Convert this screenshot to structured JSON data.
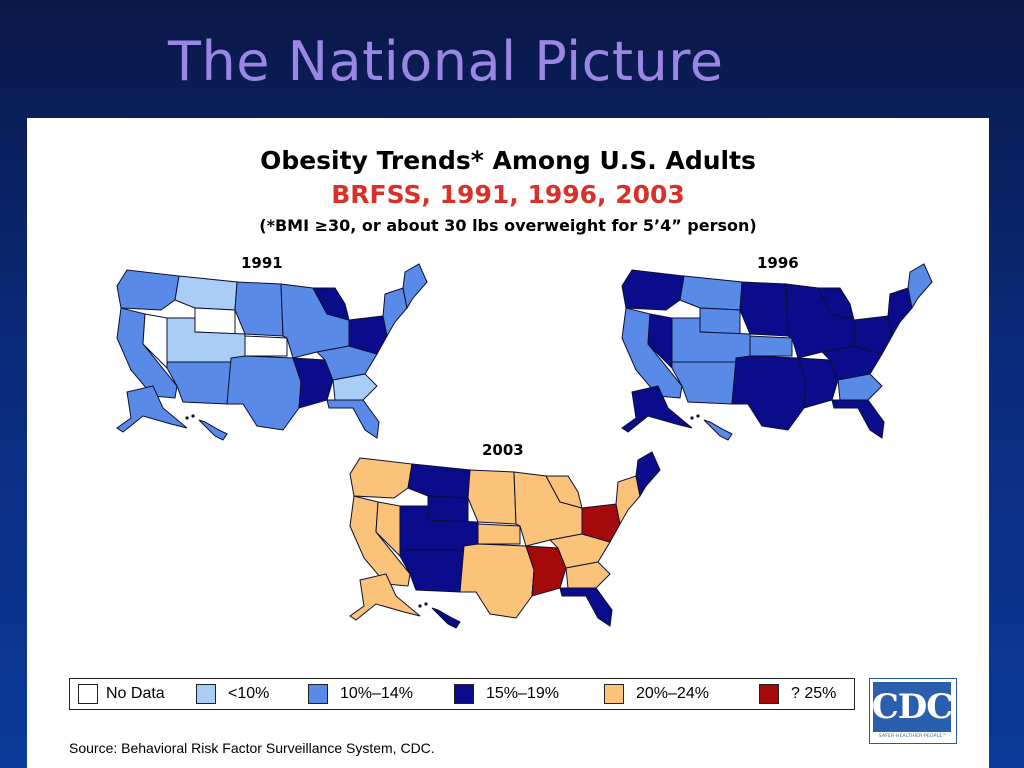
{
  "slide": {
    "title": "The National Picture",
    "heading": "Obesity Trends* Among U.S. Adults",
    "subheading": "BRFSS, 1991, 1996, 2003",
    "note": "(*BMI ≥30, or about 30 lbs overweight for 5’4” person)",
    "source": "Source: Behavioral Risk Factor Surveillance System, CDC."
  },
  "colors": {
    "no_data": "#ffffff",
    "lt10": "#a9cdf5",
    "10_14": "#5a8ae8",
    "15_19": "#0a0c8c",
    "20_24": "#fbc27a",
    "gte25": "#a50a0a"
  },
  "maps": [
    {
      "label": "1991",
      "regions": {
        "pacific_nw": "10_14",
        "california": "10_14",
        "nevada": "no_data",
        "mountain_north": "lt10",
        "wyoming": "no_data",
        "utah_colorado": "lt10",
        "southwest": "10_14",
        "plains_north": "10_14",
        "kansas": "no_data",
        "texas_ok": "10_14",
        "midwest": "10_14",
        "lower_miss": "15_19",
        "southeast": "10_14",
        "georgia_sc": "lt10",
        "florida": "10_14",
        "appalachia": "15_19",
        "great_lakes_mi": "15_19",
        "northeast": "10_14",
        "new_england": "10_14",
        "alaska": "10_14",
        "hawaii": "10_14"
      }
    },
    {
      "label": "1996",
      "regions": {
        "pacific_nw": "15_19",
        "california": "10_14",
        "nevada": "15_19",
        "mountain_north": "10_14",
        "wyoming": "10_14",
        "utah_colorado": "10_14",
        "southwest": "10_14",
        "plains_north": "15_19",
        "kansas": "10_14",
        "texas_ok": "15_19",
        "midwest": "15_19",
        "lower_miss": "15_19",
        "southeast": "15_19",
        "georgia_sc": "10_14",
        "florida": "15_19",
        "appalachia": "15_19",
        "great_lakes_mi": "15_19",
        "northeast": "15_19",
        "new_england": "10_14",
        "alaska": "15_19",
        "hawaii": "10_14"
      }
    },
    {
      "label": "2003",
      "regions": {
        "pacific_nw": "20_24",
        "california": "20_24",
        "nevada": "20_24",
        "mountain_north": "15_19",
        "wyoming": "15_19",
        "utah_colorado": "15_19",
        "southwest": "15_19",
        "plains_north": "20_24",
        "kansas": "20_24",
        "texas_ok": "20_24",
        "midwest": "20_24",
        "lower_miss": "gte25",
        "southeast": "20_24",
        "georgia_sc": "20_24",
        "florida": "15_19",
        "appalachia": "gte25",
        "great_lakes_mi": "20_24",
        "northeast": "20_24",
        "new_england": "15_19",
        "alaska": "20_24",
        "hawaii": "15_19"
      }
    }
  ],
  "legend": [
    {
      "key": "no_data",
      "label": "No Data"
    },
    {
      "key": "lt10",
      "label": "<10%"
    },
    {
      "key": "10_14",
      "label": "10%–14%"
    },
    {
      "key": "15_19",
      "label": "15%–19%"
    },
    {
      "key": "20_24",
      "label": "20%–24%"
    },
    {
      "key": "gte25",
      "label": "? 25%"
    }
  ],
  "logo": {
    "text": "CDC",
    "tagline": "SAFER·HEALTHIER·PEOPLE™"
  }
}
